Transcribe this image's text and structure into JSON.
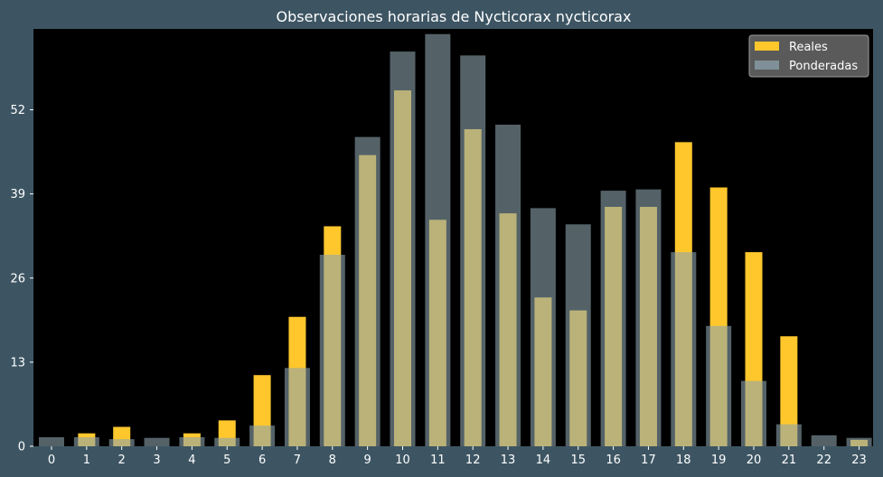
{
  "chart_data": {
    "type": "bar",
    "title": "Observaciones horarias de Nycticorax nycticorax",
    "xlabel": "",
    "ylabel": "",
    "categories": [
      "0",
      "1",
      "2",
      "3",
      "4",
      "5",
      "6",
      "7",
      "8",
      "9",
      "10",
      "11",
      "12",
      "13",
      "14",
      "15",
      "16",
      "17",
      "18",
      "19",
      "20",
      "21",
      "22",
      "23"
    ],
    "series": [
      {
        "name": "Reales",
        "color": "#ffc72c",
        "values": [
          0,
          2,
          3,
          0,
          2,
          4,
          11,
          20,
          34,
          45,
          55,
          35,
          49,
          36,
          23,
          21,
          37,
          37,
          47,
          40,
          30,
          17,
          0,
          1
        ]
      },
      {
        "name": "Ponderadas",
        "color": "#8ca3ad",
        "values": [
          1.4,
          1.4,
          1.1,
          1.3,
          1.4,
          1.3,
          3.2,
          12.1,
          29.6,
          47.8,
          61,
          63.7,
          60.4,
          49.7,
          36.8,
          34.3,
          39.5,
          39.7,
          30,
          18.6,
          10.1,
          3.4,
          1.7,
          1.3
        ]
      }
    ],
    "yticks": [
      0,
      13,
      26,
      39,
      52
    ],
    "ylim": [
      0,
      64.5
    ],
    "grid": false,
    "legend": "top-right",
    "colors": {
      "background": "#3d5563",
      "plot_area": "#000000",
      "legend_box": "#5a5a5a",
      "text": "#ffffff"
    }
  }
}
